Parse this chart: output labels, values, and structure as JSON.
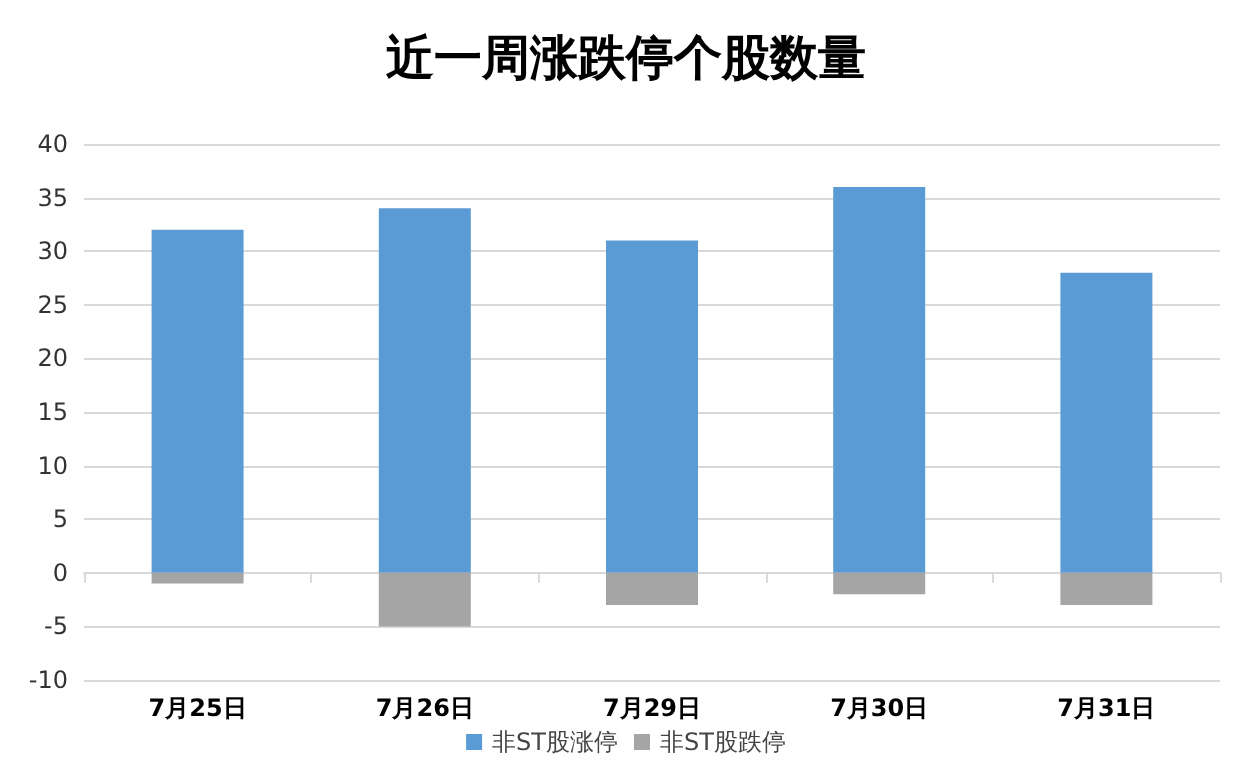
{
  "chart_data": {
    "type": "bar",
    "title": "近一周涨跌停个股数量",
    "categories": [
      "7月25日",
      "7月26日",
      "7月29日",
      "7月30日",
      "7月31日"
    ],
    "series": [
      {
        "name": "非ST股涨停",
        "color": "#5b9bd5",
        "values": [
          32,
          34,
          31,
          36,
          28
        ]
      },
      {
        "name": "非ST股跌停",
        "color": "#a5a5a5",
        "values": [
          -1,
          -5,
          -3,
          -2,
          -3
        ]
      }
    ],
    "ylim": [
      -10,
      40
    ],
    "yticks": [
      -10,
      -5,
      0,
      5,
      10,
      15,
      20,
      25,
      30,
      35,
      40
    ],
    "grid": "y",
    "legend": "bottom",
    "stacked": true
  }
}
